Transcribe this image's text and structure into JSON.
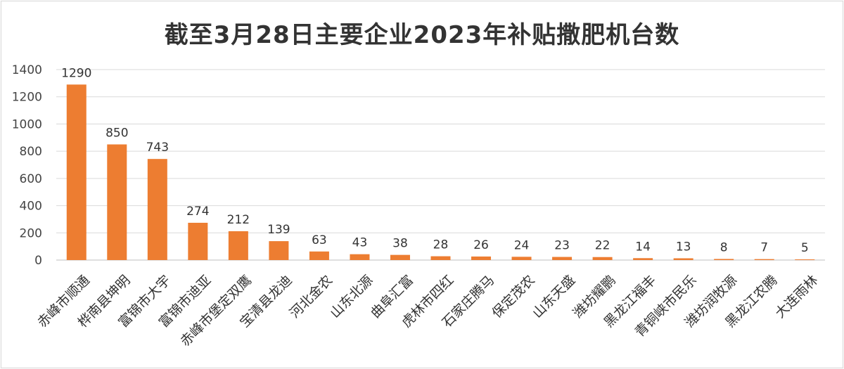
{
  "chart_data": {
    "type": "bar",
    "title": "截至3月28日主要企业2023年补贴撒肥机台数",
    "xlabel": "",
    "ylabel": "",
    "ylim": [
      0,
      1400
    ],
    "yticks": [
      0,
      200,
      400,
      600,
      800,
      1000,
      1200,
      1400
    ],
    "grid": true,
    "legend": "none",
    "color": "#ed7d31",
    "categories": [
      "赤峰市顺通",
      "桦南县坤明",
      "富锦市大宇",
      "富锦市迪亚",
      "赤峰市堡定双鹰",
      "宝清县龙迪",
      "河北金农",
      "山东北源",
      "曲阜汇富",
      "虎林市四红",
      "石家庄腾马",
      "保定茂农",
      "山东天盛",
      "潍坊耀鹏",
      "黑龙江福丰",
      "青铜峡市民乐",
      "潍坊润牧源",
      "黑龙江农腾",
      "大连雨林"
    ],
    "values": [
      1290,
      850,
      743,
      274,
      212,
      139,
      63,
      43,
      38,
      28,
      26,
      24,
      23,
      22,
      14,
      13,
      8,
      7,
      5
    ],
    "data_labels": [
      "1290",
      "850",
      "743",
      "274",
      "212",
      "139",
      "63",
      "43",
      "38",
      "28",
      "26",
      "24",
      "23",
      "22",
      "14",
      "13",
      "8",
      "7",
      "5"
    ]
  }
}
